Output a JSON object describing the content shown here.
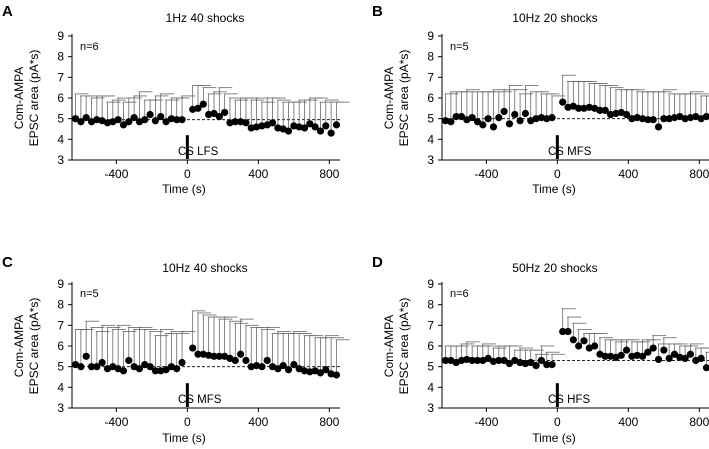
{
  "chart_data": [
    {
      "type": "scatter",
      "panel_label": "A",
      "title": "1Hz 40 shocks",
      "n_label": "n=6",
      "event_label": "CS LFS",
      "event_x": 0,
      "xlabel": "Time (s)",
      "ylabel_lines": [
        "Com-AMPA",
        "EPSC area (pA*s)"
      ],
      "xlim": [
        -650,
        860
      ],
      "ylim": [
        3,
        9
      ],
      "xticks": [
        -400,
        0,
        400,
        800
      ],
      "yticks": [
        3,
        4,
        5,
        6,
        7,
        8,
        9
      ],
      "baseline": 4.95,
      "x": [
        -630,
        -600,
        -570,
        -540,
        -510,
        -480,
        -450,
        -420,
        -390,
        -360,
        -330,
        -300,
        -270,
        -240,
        -210,
        -180,
        -150,
        -120,
        -90,
        -60,
        -30,
        30,
        60,
        90,
        120,
        150,
        180,
        210,
        240,
        270,
        300,
        330,
        360,
        390,
        420,
        450,
        480,
        510,
        540,
        570,
        600,
        630,
        660,
        690,
        720,
        750,
        780,
        810,
        840
      ],
      "y": [
        5.0,
        4.85,
        5.05,
        4.85,
        4.95,
        4.9,
        4.8,
        4.85,
        4.95,
        4.7,
        4.85,
        5.05,
        4.85,
        4.95,
        5.2,
        4.9,
        5.1,
        4.85,
        5.0,
        4.95,
        4.95,
        5.45,
        5.5,
        5.7,
        5.2,
        5.25,
        5.1,
        5.3,
        4.8,
        4.85,
        4.85,
        4.8,
        4.55,
        4.6,
        4.65,
        4.7,
        4.8,
        4.55,
        4.5,
        4.4,
        4.65,
        4.6,
        4.55,
        4.75,
        4.6,
        4.4,
        4.65,
        4.3,
        4.7
      ],
      "err_upper": [
        6.2,
        6.1,
        6.1,
        6.0,
        6.1,
        6.1,
        5.8,
        5.9,
        6.0,
        5.8,
        6.0,
        6.1,
        6.3,
        5.9,
        5.9,
        6.1,
        6.2,
        5.9,
        6.0,
        6.0,
        6.1,
        6.6,
        6.6,
        6.5,
        6.2,
        6.3,
        6.5,
        6.2,
        6.0,
        5.9,
        6.0,
        6.0,
        5.9,
        6.0,
        5.8,
        6.0,
        6.0,
        5.9,
        5.8,
        5.8,
        5.8,
        5.9,
        5.9,
        6.0,
        6.0,
        5.8,
        5.9,
        5.8,
        5.8
      ]
    },
    {
      "type": "scatter",
      "panel_label": "B",
      "title": "10Hz 20 shocks",
      "n_label": "n=5",
      "event_label": "CS MFS",
      "event_x": 0,
      "xlabel": "Time (s)",
      "ylabel_lines": [
        "Com-AMPA",
        "EPSC area (pA*s)"
      ],
      "xlim": [
        -650,
        860
      ],
      "ylim": [
        3,
        9
      ],
      "xticks": [
        -400,
        0,
        400,
        800
      ],
      "yticks": [
        3,
        4,
        5,
        6,
        7,
        8,
        9
      ],
      "baseline": 5.0,
      "x": [
        -630,
        -600,
        -570,
        -540,
        -510,
        -480,
        -450,
        -420,
        -390,
        -360,
        -330,
        -300,
        -270,
        -240,
        -210,
        -180,
        -150,
        -120,
        -90,
        -60,
        -30,
        30,
        60,
        90,
        120,
        150,
        180,
        210,
        240,
        270,
        300,
        330,
        360,
        390,
        420,
        450,
        480,
        510,
        540,
        570,
        600,
        630,
        660,
        690,
        720,
        750,
        780,
        810,
        840
      ],
      "y": [
        4.9,
        4.85,
        5.1,
        5.1,
        4.95,
        5.05,
        4.85,
        4.7,
        5.0,
        4.6,
        5.05,
        5.35,
        4.75,
        5.2,
        4.9,
        5.25,
        4.9,
        5.0,
        5.05,
        5.0,
        5.05,
        5.8,
        5.55,
        5.6,
        5.5,
        5.5,
        5.55,
        5.5,
        5.4,
        5.4,
        5.2,
        5.25,
        5.3,
        5.2,
        5.0,
        5.05,
        5.0,
        4.95,
        4.95,
        4.6,
        5.0,
        5.0,
        5.05,
        5.1,
        5.0,
        5.05,
        5.1,
        5.0,
        5.1
      ],
      "err_upper": [
        6.2,
        6.3,
        6.3,
        6.3,
        6.4,
        6.3,
        6.3,
        6.3,
        6.3,
        6.4,
        6.3,
        6.4,
        6.6,
        6.4,
        6.2,
        6.6,
        6.3,
        6.3,
        6.2,
        6.2,
        6.1,
        7.1,
        6.8,
        6.8,
        6.8,
        6.8,
        6.7,
        6.7,
        6.6,
        6.6,
        6.5,
        6.4,
        6.4,
        6.4,
        6.4,
        6.3,
        6.3,
        6.3,
        6.3,
        6.3,
        6.4,
        6.2,
        6.2,
        6.2,
        6.2,
        6.3,
        6.2,
        6.1,
        6.1
      ]
    },
    {
      "type": "scatter",
      "panel_label": "C",
      "title": "10Hz 40 shocks",
      "n_label": "n=5",
      "event_label": "CS MFS",
      "event_x": 0,
      "xlabel": "Time (s)",
      "ylabel_lines": [
        "Com-AMPA",
        "EPSC area (pA*s)"
      ],
      "xlim": [
        -650,
        860
      ],
      "ylim": [
        3,
        9
      ],
      "xticks": [
        -400,
        0,
        400,
        800
      ],
      "yticks": [
        3,
        4,
        5,
        6,
        7,
        8,
        9
      ],
      "baseline": 5.0,
      "x": [
        -630,
        -600,
        -570,
        -540,
        -510,
        -480,
        -450,
        -420,
        -390,
        -360,
        -330,
        -300,
        -270,
        -240,
        -210,
        -180,
        -150,
        -120,
        -90,
        -60,
        -30,
        30,
        60,
        90,
        120,
        150,
        180,
        210,
        240,
        270,
        300,
        330,
        360,
        390,
        420,
        450,
        480,
        510,
        540,
        570,
        600,
        630,
        660,
        690,
        720,
        750,
        780,
        810,
        840
      ],
      "y": [
        5.1,
        5.0,
        5.5,
        5.0,
        5.0,
        5.2,
        4.9,
        5.0,
        4.9,
        4.8,
        5.3,
        5.0,
        4.9,
        5.1,
        5.0,
        4.8,
        4.8,
        4.85,
        5.0,
        4.9,
        5.2,
        5.9,
        5.6,
        5.6,
        5.55,
        5.5,
        5.5,
        5.5,
        5.4,
        5.3,
        5.6,
        5.3,
        5.0,
        5.05,
        5.0,
        5.3,
        5.0,
        4.9,
        5.05,
        4.85,
        5.1,
        4.9,
        4.8,
        4.75,
        4.8,
        4.7,
        4.85,
        4.65,
        4.6
      ],
      "err_upper": [
        6.8,
        6.8,
        7.2,
        6.9,
        6.7,
        7.0,
        6.9,
        6.8,
        7.0,
        6.7,
        6.9,
        6.8,
        6.9,
        6.8,
        6.7,
        6.5,
        6.8,
        6.6,
        6.7,
        6.6,
        6.7,
        7.7,
        7.6,
        7.5,
        7.4,
        7.4,
        7.3,
        7.4,
        7.2,
        7.1,
        7.3,
        7.0,
        6.9,
        6.9,
        6.8,
        6.9,
        6.6,
        6.7,
        6.6,
        6.6,
        6.7,
        6.6,
        6.5,
        6.5,
        6.4,
        6.4,
        6.5,
        6.4,
        6.3
      ]
    },
    {
      "type": "scatter",
      "panel_label": "D",
      "title": "50Hz 20 shocks",
      "n_label": "n=6",
      "event_label": "CS HFS",
      "event_x": 0,
      "xlabel": "Time (s)",
      "ylabel_lines": [
        "Com-AMPA",
        "EPSC area (pA*s)"
      ],
      "xlim": [
        -650,
        860
      ],
      "ylim": [
        3,
        9
      ],
      "xticks": [
        -400,
        0,
        400,
        800
      ],
      "yticks": [
        3,
        4,
        5,
        6,
        7,
        8,
        9
      ],
      "baseline": 5.3,
      "x": [
        -630,
        -600,
        -570,
        -540,
        -510,
        -480,
        -450,
        -420,
        -390,
        -360,
        -330,
        -300,
        -270,
        -240,
        -210,
        -180,
        -150,
        -120,
        -90,
        -60,
        -30,
        30,
        60,
        90,
        120,
        150,
        180,
        210,
        240,
        270,
        300,
        330,
        360,
        390,
        420,
        450,
        480,
        510,
        540,
        570,
        600,
        630,
        660,
        690,
        720,
        750,
        780,
        810,
        840
      ],
      "y": [
        5.3,
        5.3,
        5.2,
        5.3,
        5.35,
        5.3,
        5.3,
        5.3,
        5.4,
        5.25,
        5.3,
        5.3,
        5.15,
        5.3,
        5.2,
        5.15,
        5.2,
        5.05,
        5.3,
        5.1,
        5.1,
        6.7,
        6.7,
        6.3,
        6.0,
        6.25,
        5.9,
        6.0,
        5.6,
        5.5,
        5.5,
        5.45,
        5.55,
        5.8,
        5.5,
        5.55,
        5.5,
        5.7,
        5.9,
        5.35,
        5.8,
        5.4,
        5.6,
        5.45,
        5.4,
        5.6,
        5.3,
        5.4,
        4.95
      ],
      "err_upper": [
        6.0,
        6.0,
        6.0,
        6.1,
        6.2,
        6.0,
        6.0,
        6.1,
        6.0,
        5.9,
        6.0,
        6.0,
        6.0,
        5.8,
        5.9,
        5.8,
        5.8,
        5.6,
        6.0,
        5.7,
        5.6,
        7.8,
        7.4,
        7.1,
        6.8,
        6.6,
        6.6,
        6.6,
        6.4,
        6.3,
        6.3,
        6.2,
        6.3,
        6.3,
        6.2,
        6.2,
        6.3,
        6.3,
        6.5,
        6.1,
        6.4,
        6.1,
        6.1,
        6.0,
        6.0,
        6.1,
        5.9,
        5.9,
        5.7
      ]
    }
  ]
}
